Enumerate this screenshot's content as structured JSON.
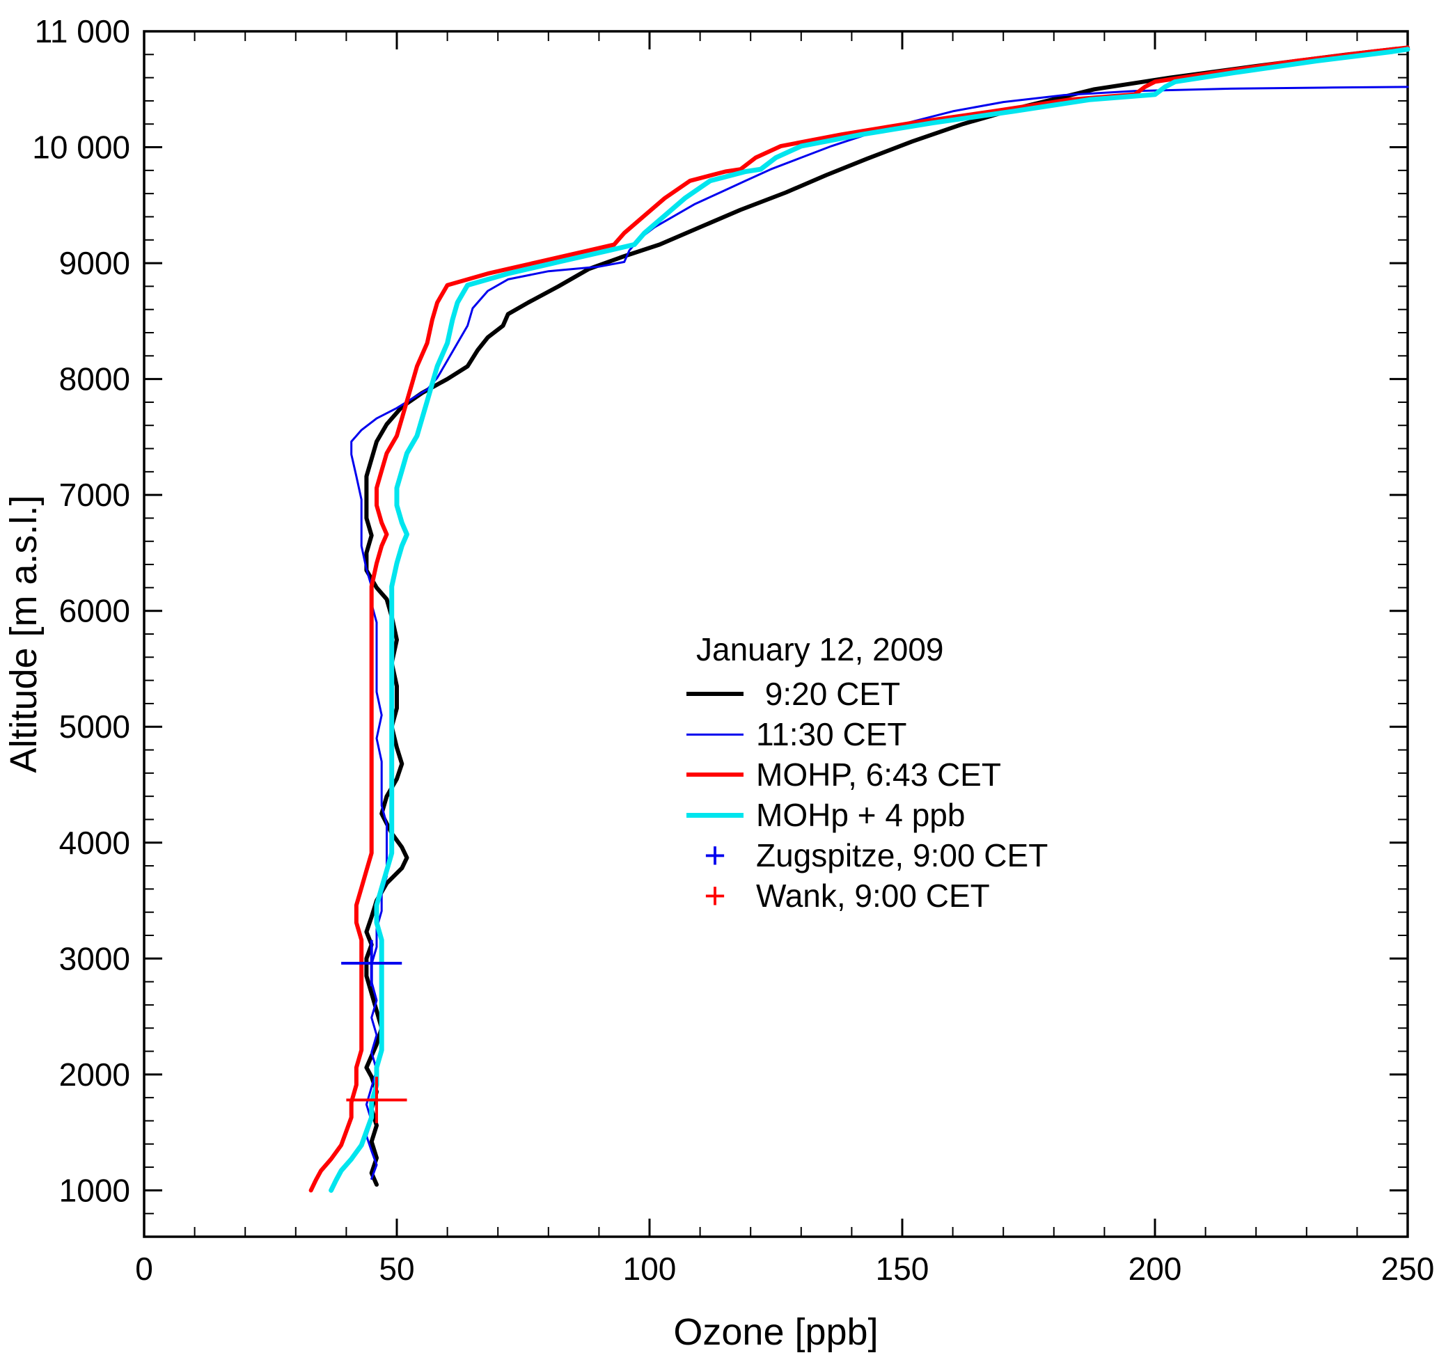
{
  "figure": {
    "background": "#ffffff"
  },
  "chart_data": {
    "type": "line",
    "title": "",
    "xlabel": "Ozone [ppb]",
    "ylabel": "Altitude [m a.s.l.]",
    "xlim": [
      0,
      250
    ],
    "ylim": [
      600,
      11000
    ],
    "x_major_ticks": [
      0,
      50,
      100,
      150,
      200,
      250
    ],
    "x_minor_step": 10,
    "y_major_ticks": [
      1000,
      2000,
      3000,
      4000,
      5000,
      6000,
      7000,
      8000,
      9000,
      10000,
      11000
    ],
    "y_tick_labels": [
      "1000",
      "2000",
      "3000",
      "4000",
      "5000",
      "6000",
      "7000",
      "8000",
      "9000",
      "10 000",
      "11 000"
    ],
    "y_minor_step": 200,
    "grid": false,
    "legend": {
      "title": "January 12, 2009",
      "position": "lower-right"
    },
    "series": [
      {
        "name": " 9:20 CET",
        "color": "#000000",
        "line_width": 6,
        "points": [
          [
            46,
            1050
          ],
          [
            45,
            1150
          ],
          [
            46,
            1280
          ],
          [
            45,
            1420
          ],
          [
            46,
            1560
          ],
          [
            45,
            1700
          ],
          [
            46,
            1850
          ],
          [
            45,
            1980
          ],
          [
            44,
            2060
          ],
          [
            45,
            2160
          ],
          [
            46,
            2260
          ],
          [
            47,
            2400
          ],
          [
            46,
            2550
          ],
          [
            45,
            2700
          ],
          [
            44,
            2850
          ],
          [
            44,
            3000
          ],
          [
            45,
            3120
          ],
          [
            44,
            3230
          ],
          [
            45,
            3360
          ],
          [
            46,
            3500
          ],
          [
            48,
            3650
          ],
          [
            51,
            3780
          ],
          [
            52,
            3870
          ],
          [
            51,
            3960
          ],
          [
            49,
            4080
          ],
          [
            47,
            4250
          ],
          [
            48,
            4400
          ],
          [
            50,
            4550
          ],
          [
            51,
            4680
          ],
          [
            50,
            4820
          ],
          [
            49,
            5000
          ],
          [
            50,
            5160
          ],
          [
            50,
            5350
          ],
          [
            49,
            5550
          ],
          [
            50,
            5750
          ],
          [
            49,
            5950
          ],
          [
            48,
            6100
          ],
          [
            46,
            6200
          ],
          [
            44,
            6350
          ],
          [
            44,
            6500
          ],
          [
            45,
            6650
          ],
          [
            44,
            6800
          ],
          [
            44,
            7000
          ],
          [
            44,
            7160
          ],
          [
            45,
            7310
          ],
          [
            46,
            7460
          ],
          [
            48,
            7610
          ],
          [
            51,
            7760
          ],
          [
            55,
            7880
          ],
          [
            60,
            8000
          ],
          [
            64,
            8110
          ],
          [
            66,
            8250
          ],
          [
            68,
            8360
          ],
          [
            71,
            8460
          ],
          [
            72,
            8560
          ],
          [
            76,
            8660
          ],
          [
            82,
            8800
          ],
          [
            88,
            8950
          ],
          [
            95,
            9060
          ],
          [
            102,
            9160
          ],
          [
            110,
            9310
          ],
          [
            118,
            9460
          ],
          [
            127,
            9610
          ],
          [
            135,
            9760
          ],
          [
            143,
            9900
          ],
          [
            152,
            10050
          ],
          [
            162,
            10200
          ],
          [
            174,
            10350
          ],
          [
            188,
            10500
          ],
          [
            203,
            10600
          ],
          [
            220,
            10700
          ],
          [
            238,
            10800
          ],
          [
            248,
            10850
          ]
        ]
      },
      {
        "name": "11:30 CET",
        "color": "#0000EE",
        "line_width": 3,
        "points": [
          [
            45,
            1100
          ],
          [
            46,
            1220
          ],
          [
            45,
            1340
          ],
          [
            44,
            1470
          ],
          [
            45,
            1600
          ],
          [
            44,
            1740
          ],
          [
            45,
            1890
          ],
          [
            46,
            2040
          ],
          [
            45,
            2190
          ],
          [
            46,
            2340
          ],
          [
            45,
            2490
          ],
          [
            46,
            2640
          ],
          [
            45,
            2800
          ],
          [
            45,
            2950
          ],
          [
            46,
            3100
          ],
          [
            46,
            3260
          ],
          [
            47,
            3410
          ],
          [
            47,
            3560
          ],
          [
            48,
            3710
          ],
          [
            48,
            3860
          ],
          [
            48,
            4010
          ],
          [
            48,
            4160
          ],
          [
            47,
            4320
          ],
          [
            47,
            4500
          ],
          [
            47,
            4700
          ],
          [
            46,
            4900
          ],
          [
            47,
            5100
          ],
          [
            46,
            5300
          ],
          [
            46,
            5500
          ],
          [
            46,
            5700
          ],
          [
            46,
            5900
          ],
          [
            45,
            6060
          ],
          [
            45,
            6210
          ],
          [
            44,
            6360
          ],
          [
            43,
            6560
          ],
          [
            43,
            6760
          ],
          [
            43,
            6960
          ],
          [
            42,
            7160
          ],
          [
            41,
            7350
          ],
          [
            41,
            7460
          ],
          [
            43,
            7560
          ],
          [
            46,
            7660
          ],
          [
            50,
            7750
          ],
          [
            53,
            7830
          ],
          [
            56,
            7910
          ],
          [
            58,
            8010
          ],
          [
            60,
            8160
          ],
          [
            62,
            8310
          ],
          [
            64,
            8460
          ],
          [
            65,
            8610
          ],
          [
            68,
            8760
          ],
          [
            72,
            8860
          ],
          [
            80,
            8930
          ],
          [
            90,
            8970
          ],
          [
            95,
            9010
          ],
          [
            96,
            9110
          ],
          [
            98,
            9210
          ],
          [
            101,
            9310
          ],
          [
            105,
            9410
          ],
          [
            109,
            9510
          ],
          [
            114,
            9610
          ],
          [
            119,
            9710
          ],
          [
            124,
            9810
          ],
          [
            130,
            9910
          ],
          [
            136,
            10010
          ],
          [
            143,
            10110
          ],
          [
            151,
            10210
          ],
          [
            160,
            10310
          ],
          [
            170,
            10390
          ],
          [
            182,
            10450
          ],
          [
            196,
            10485
          ],
          [
            215,
            10505
          ],
          [
            235,
            10515
          ],
          [
            250,
            10520
          ]
        ]
      },
      {
        "name": "MOHP, 6:43 CET",
        "color": "#FF0000",
        "line_width": 6,
        "points": [
          [
            33,
            1000
          ],
          [
            34,
            1090
          ],
          [
            35,
            1170
          ],
          [
            37,
            1270
          ],
          [
            39,
            1390
          ],
          [
            40,
            1510
          ],
          [
            41,
            1630
          ],
          [
            41,
            1760
          ],
          [
            42,
            1910
          ],
          [
            42,
            2060
          ],
          [
            43,
            2210
          ],
          [
            43,
            2410
          ],
          [
            43,
            2610
          ],
          [
            43,
            2810
          ],
          [
            43,
            3010
          ],
          [
            43,
            3160
          ],
          [
            42,
            3310
          ],
          [
            42,
            3460
          ],
          [
            43,
            3610
          ],
          [
            44,
            3760
          ],
          [
            45,
            3910
          ],
          [
            45,
            4060
          ],
          [
            45,
            4210
          ],
          [
            45,
            4410
          ],
          [
            45,
            4610
          ],
          [
            45,
            4810
          ],
          [
            45,
            5010
          ],
          [
            45,
            5210
          ],
          [
            45,
            5410
          ],
          [
            45,
            5610
          ],
          [
            45,
            5810
          ],
          [
            45,
            6010
          ],
          [
            45,
            6210
          ],
          [
            46,
            6410
          ],
          [
            47,
            6560
          ],
          [
            48,
            6660
          ],
          [
            47,
            6760
          ],
          [
            46,
            6910
          ],
          [
            46,
            7060
          ],
          [
            47,
            7210
          ],
          [
            48,
            7360
          ],
          [
            50,
            7510
          ],
          [
            51,
            7660
          ],
          [
            52,
            7810
          ],
          [
            53,
            7960
          ],
          [
            54,
            8110
          ],
          [
            56,
            8310
          ],
          [
            57,
            8510
          ],
          [
            58,
            8660
          ],
          [
            60,
            8810
          ],
          [
            68,
            8910
          ],
          [
            78,
            9010
          ],
          [
            88,
            9110
          ],
          [
            93,
            9160
          ],
          [
            95,
            9260
          ],
          [
            99,
            9410
          ],
          [
            103,
            9560
          ],
          [
            108,
            9710
          ],
          [
            115,
            9790
          ],
          [
            118,
            9810
          ],
          [
            121,
            9910
          ],
          [
            126,
            10010
          ],
          [
            138,
            10110
          ],
          [
            152,
            10210
          ],
          [
            168,
            10310
          ],
          [
            183,
            10410
          ],
          [
            196,
            10455
          ],
          [
            198,
            10520
          ],
          [
            200,
            10565
          ],
          [
            212,
            10645
          ],
          [
            228,
            10745
          ],
          [
            243,
            10825
          ],
          [
            250,
            10860
          ]
        ]
      },
      {
        "name": "MOHp + 4 ppb",
        "color": "#00E5EE",
        "line_width": 7,
        "points": [
          [
            37,
            1000
          ],
          [
            38,
            1090
          ],
          [
            39,
            1170
          ],
          [
            41,
            1270
          ],
          [
            43,
            1390
          ],
          [
            44,
            1510
          ],
          [
            45,
            1630
          ],
          [
            45,
            1760
          ],
          [
            46,
            1910
          ],
          [
            46,
            2060
          ],
          [
            47,
            2210
          ],
          [
            47,
            2410
          ],
          [
            47,
            2610
          ],
          [
            47,
            2810
          ],
          [
            47,
            3010
          ],
          [
            47,
            3160
          ],
          [
            46,
            3310
          ],
          [
            46,
            3460
          ],
          [
            47,
            3610
          ],
          [
            48,
            3760
          ],
          [
            49,
            3910
          ],
          [
            49,
            4060
          ],
          [
            49,
            4210
          ],
          [
            49,
            4410
          ],
          [
            49,
            4610
          ],
          [
            49,
            4810
          ],
          [
            49,
            5010
          ],
          [
            49,
            5210
          ],
          [
            49,
            5410
          ],
          [
            49,
            5610
          ],
          [
            49,
            5810
          ],
          [
            49,
            6010
          ],
          [
            49,
            6210
          ],
          [
            50,
            6410
          ],
          [
            51,
            6560
          ],
          [
            52,
            6660
          ],
          [
            51,
            6760
          ],
          [
            50,
            6910
          ],
          [
            50,
            7060
          ],
          [
            51,
            7210
          ],
          [
            52,
            7360
          ],
          [
            54,
            7510
          ],
          [
            55,
            7660
          ],
          [
            56,
            7810
          ],
          [
            57,
            7960
          ],
          [
            58,
            8110
          ],
          [
            60,
            8310
          ],
          [
            61,
            8510
          ],
          [
            62,
            8660
          ],
          [
            64,
            8810
          ],
          [
            72,
            8910
          ],
          [
            82,
            9010
          ],
          [
            92,
            9110
          ],
          [
            97,
            9160
          ],
          [
            99,
            9260
          ],
          [
            103,
            9410
          ],
          [
            107,
            9560
          ],
          [
            112,
            9710
          ],
          [
            119,
            9790
          ],
          [
            122,
            9810
          ],
          [
            125,
            9910
          ],
          [
            130,
            10010
          ],
          [
            142,
            10110
          ],
          [
            156,
            10210
          ],
          [
            172,
            10310
          ],
          [
            187,
            10410
          ],
          [
            200,
            10455
          ],
          [
            202,
            10520
          ],
          [
            204,
            10565
          ],
          [
            216,
            10645
          ],
          [
            232,
            10745
          ],
          [
            247,
            10825
          ],
          [
            250,
            10845
          ]
        ]
      }
    ],
    "markers": [
      {
        "label": "Zugspitze, 9:00 CET",
        "symbol": "plus",
        "color": "#0000EE",
        "x": 45,
        "y": 2960,
        "halfwidth_ppb": 6,
        "halfheight_m": 200
      },
      {
        "label": "Wank, 9:00 CET",
        "symbol": "plus",
        "color": "#FF0000",
        "x": 46,
        "y": 1780,
        "halfwidth_ppb": 6,
        "halfheight_m": 200
      }
    ]
  }
}
